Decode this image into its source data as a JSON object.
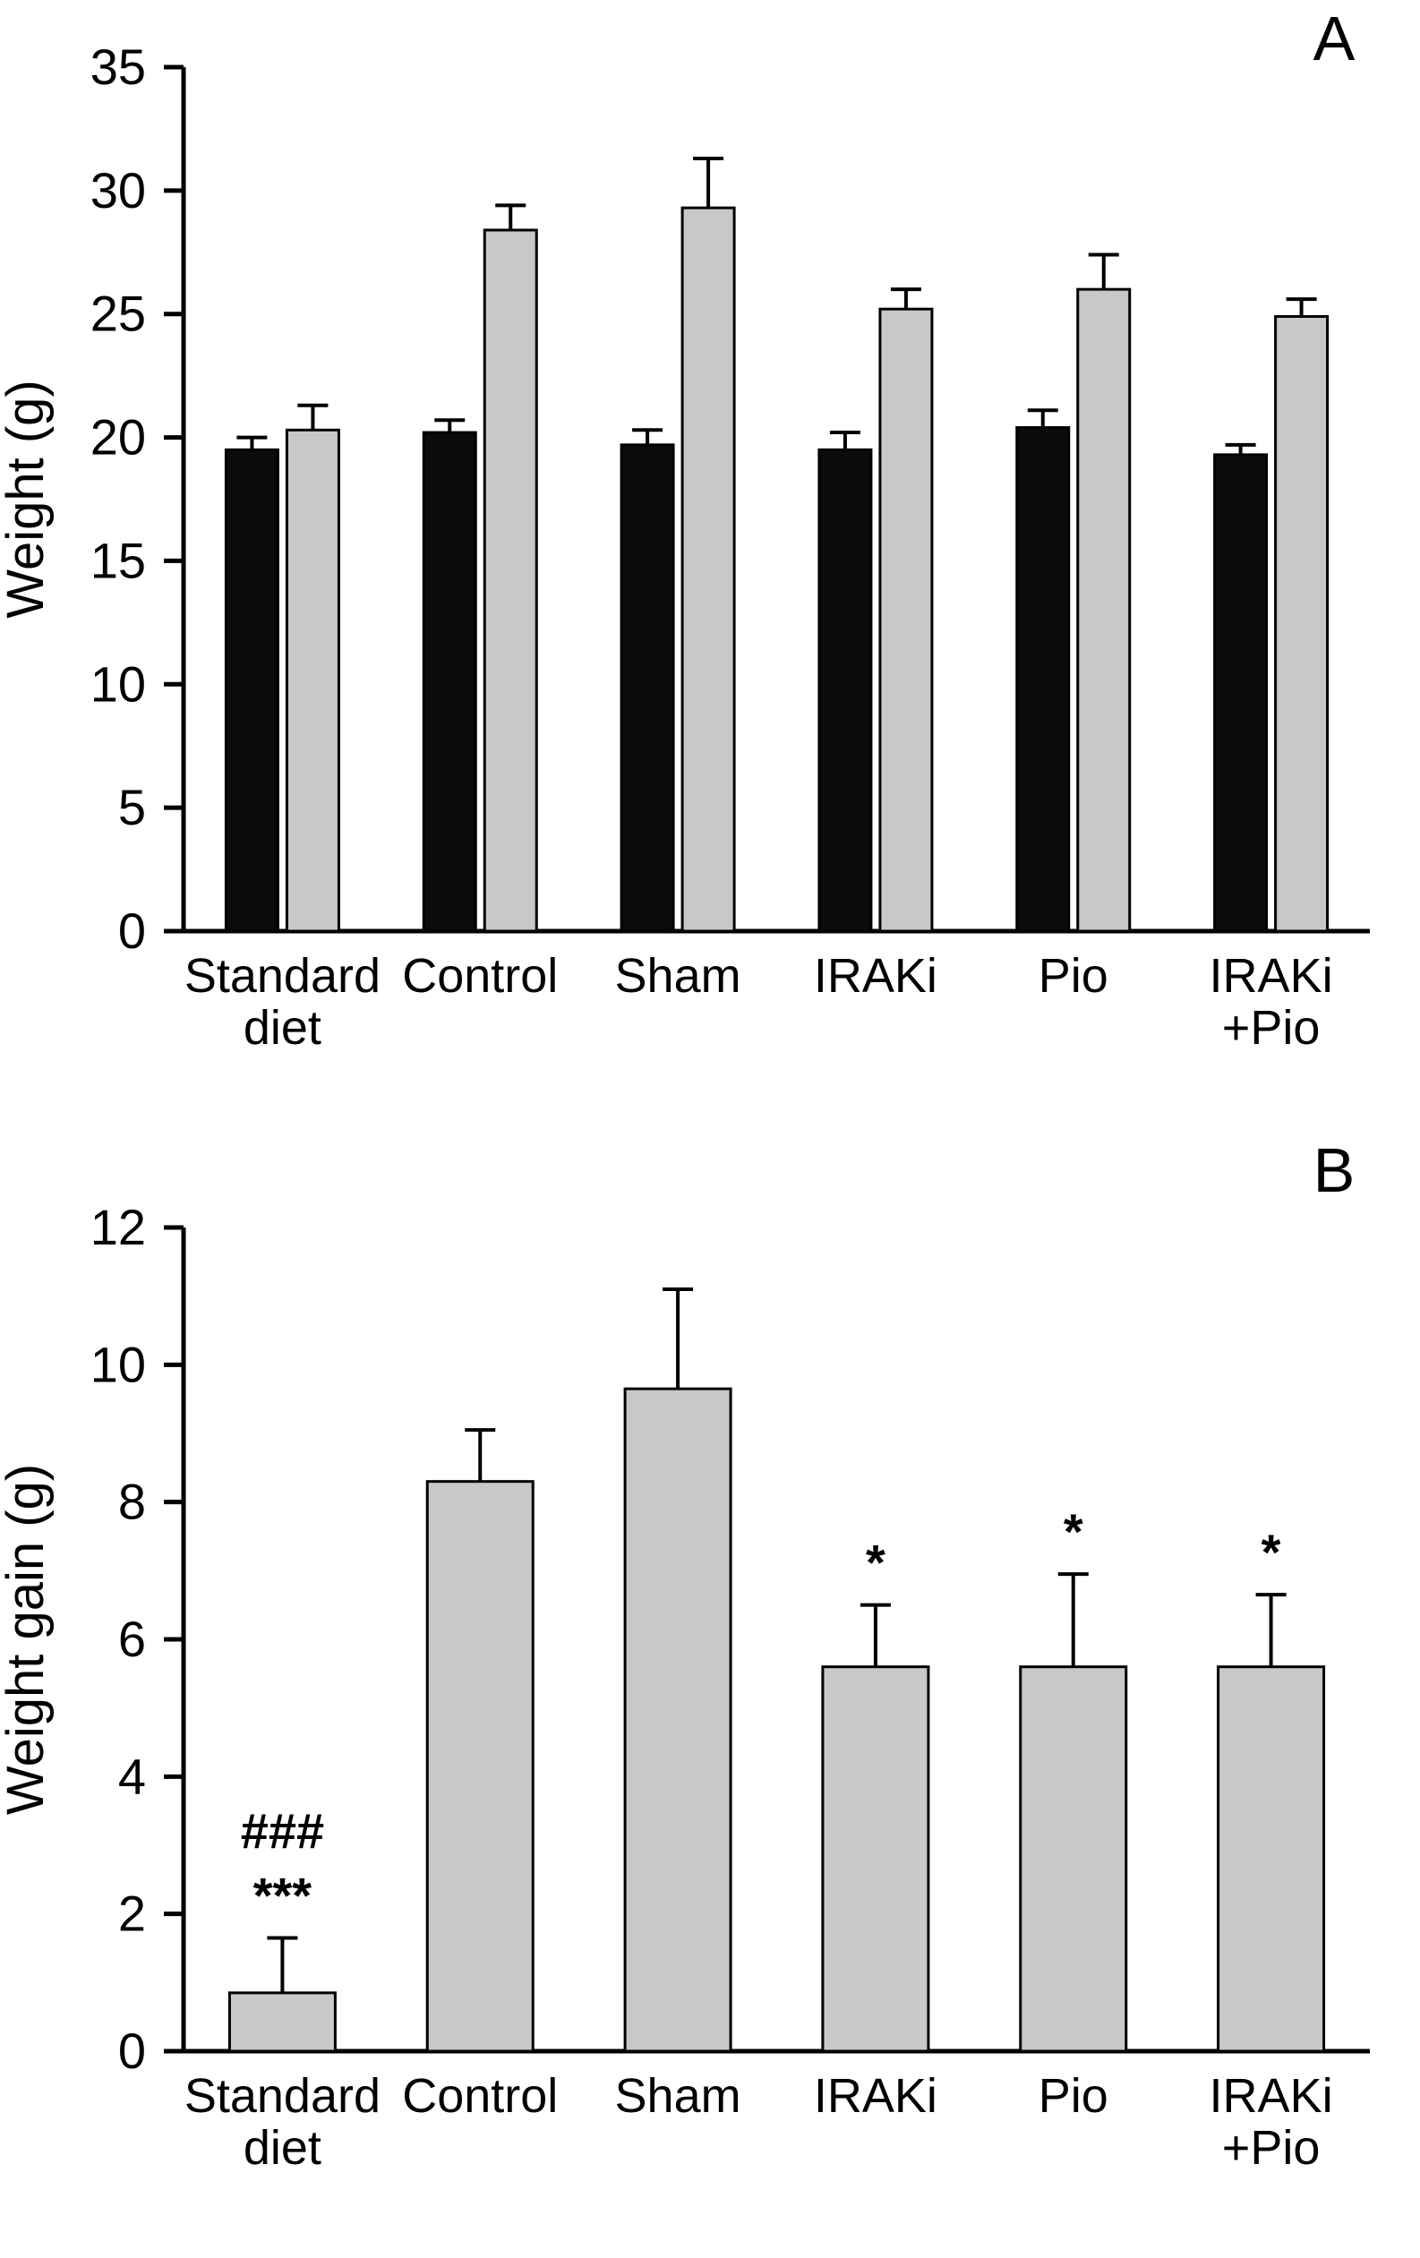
{
  "figure": {
    "background": "#ffffff",
    "axis_color": "#000000"
  },
  "chart_data": [
    {
      "type": "bar",
      "panel": "A",
      "title": "",
      "xlabel": "",
      "ylabel": "Weight (g)",
      "ylim": [
        0,
        35
      ],
      "yticks": [
        0,
        5,
        10,
        15,
        20,
        25,
        30,
        35
      ],
      "grid": false,
      "legend": "none",
      "categories": [
        [
          "Standard",
          "diet"
        ],
        [
          "Control"
        ],
        [
          "Sham"
        ],
        [
          "IRAKi"
        ],
        [
          "Pio"
        ],
        [
          "IRAKi",
          "+Pio"
        ]
      ],
      "series": [
        {
          "name": "black",
          "color": "#0b0b0b",
          "stroke": "#000000",
          "values": [
            19.5,
            20.2,
            19.7,
            19.5,
            20.4,
            19.3
          ],
          "errors": [
            0.5,
            0.5,
            0.6,
            0.7,
            0.7,
            0.4
          ]
        },
        {
          "name": "gray",
          "color": "#c8c8c8",
          "stroke": "#000000",
          "values": [
            20.3,
            28.4,
            29.3,
            25.2,
            26.0,
            24.9
          ],
          "errors": [
            1.0,
            1.0,
            2.0,
            0.8,
            1.4,
            0.7
          ]
        }
      ],
      "annotations": []
    },
    {
      "type": "bar",
      "panel": "B",
      "title": "",
      "xlabel": "",
      "ylabel": "Weight gain (g)",
      "ylim": [
        0,
        12
      ],
      "yticks": [
        0,
        2,
        4,
        6,
        8,
        10,
        12
      ],
      "grid": false,
      "legend": "none",
      "categories": [
        [
          "Standard",
          "diet"
        ],
        [
          "Control"
        ],
        [
          "Sham"
        ],
        [
          "IRAKi"
        ],
        [
          "Pio"
        ],
        [
          "IRAKi",
          "+Pio"
        ]
      ],
      "series": [
        {
          "name": "gray",
          "color": "#c8c8c8",
          "stroke": "#000000",
          "values": [
            0.85,
            8.3,
            9.65,
            5.6,
            5.6,
            5.6
          ],
          "errors": [
            0.8,
            0.75,
            1.45,
            0.9,
            1.35,
            1.05
          ]
        }
      ],
      "annotations": [
        {
          "category": 0,
          "lines": [
            "###",
            "***"
          ]
        },
        {
          "category": 3,
          "lines": [
            "*"
          ]
        },
        {
          "category": 4,
          "lines": [
            "*"
          ]
        },
        {
          "category": 5,
          "lines": [
            "*"
          ]
        }
      ]
    }
  ]
}
